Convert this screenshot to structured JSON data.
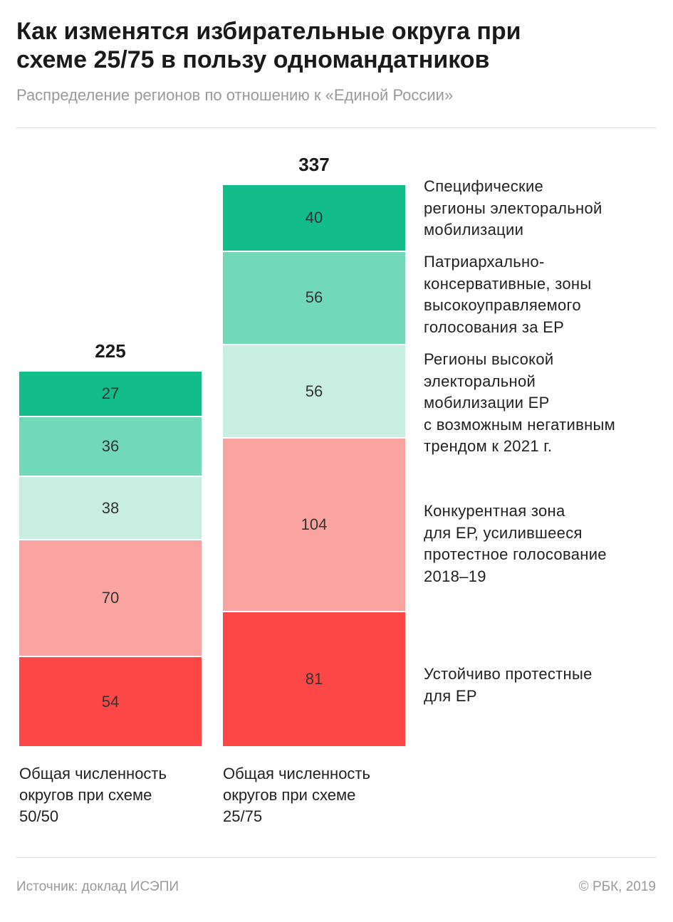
{
  "chart_data": {
    "type": "stacked-bar",
    "title": "Как изменятся избирательные округа при\nсхеме 25/75 в пользу одномандатников",
    "subtitle": "Распределение регионов по отношению к «Единой России»",
    "categories": [
      "Общая численность\nокругов при схеме\n50/50",
      "Общая численность\nокругов при схеме\n25/75"
    ],
    "totals": [
      225,
      337
    ],
    "series": [
      {
        "name": "Устойчиво протестные\nдля ЕР",
        "color": "#fd4646",
        "values": [
          54,
          81
        ]
      },
      {
        "name": "Конкурентная зона\nдля ЕР, усилившееся\nпротестное голосование\n2018–19",
        "color": "#f9a4a0",
        "values": [
          70,
          104
        ]
      },
      {
        "name": "Регионы высокой\nэлекторальной\nмобилизации ЕР\nс возможным негативным\nтрендом к 2021 г.",
        "color": "#c8eee2",
        "values": [
          38,
          56
        ]
      },
      {
        "name": "Патриархально-\nконсервативные, зоны\nвысокоуправляемого\nголосования за ЕР",
        "color": "#72d9b8",
        "values": [
          36,
          56
        ]
      },
      {
        "name": "Специфические\nрегионы электоральной\nмобилизации",
        "color": "#13bd8a",
        "values": [
          27,
          40
        ]
      }
    ]
  },
  "footer": {
    "source": "Источник: доклад ИСЭПИ",
    "copyright": "© РБК, 2019"
  }
}
